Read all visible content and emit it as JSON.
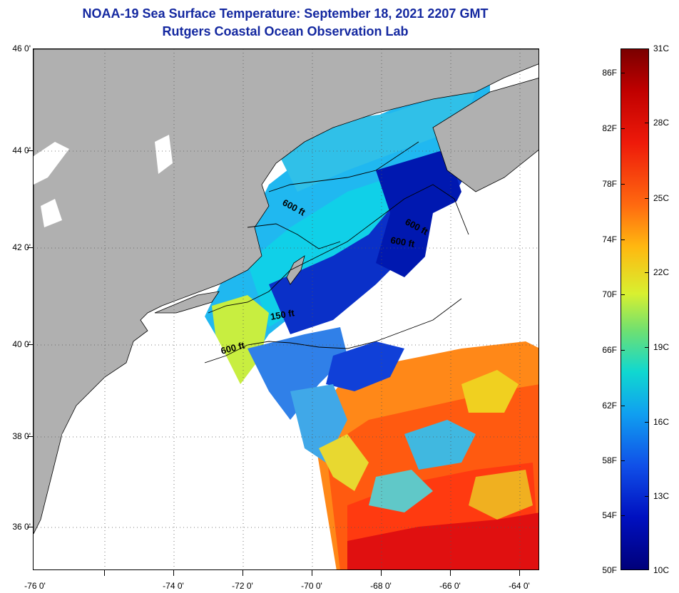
{
  "title": {
    "line1": "NOAA-19 Sea Surface Temperature:  September 18, 2021 2207 GMT",
    "line2": "Rutgers Coastal Ocean Observation Lab"
  },
  "axes": {
    "lat_labels": [
      "46 0'",
      "44 0'",
      "42 0'",
      "40 0'",
      "38 0'",
      "36 0'"
    ],
    "lon_labels": [
      "-76 0'",
      "-74 0'",
      "-72 0'",
      "-70 0'",
      "-68 0'",
      "-66 0'",
      "-64 0'"
    ]
  },
  "contours": {
    "label_600_gulf": "600 ft",
    "label_600_east1": "600 ft",
    "label_600_east2": "600 ft",
    "label_150": "150 ft",
    "label_600_shelf": "600 ft"
  },
  "colorbar": {
    "fahrenheit": [
      "86F",
      "82F",
      "78F",
      "74F",
      "70F",
      "66F",
      "62F",
      "58F",
      "54F",
      "50F"
    ],
    "celsius": [
      "31C",
      "28C",
      "25C",
      "22C",
      "19C",
      "16C",
      "13C",
      "10C"
    ]
  },
  "colors": {
    "land": "#b0b0b0",
    "no_data": "#ffffff",
    "title": "#1428a0"
  }
}
